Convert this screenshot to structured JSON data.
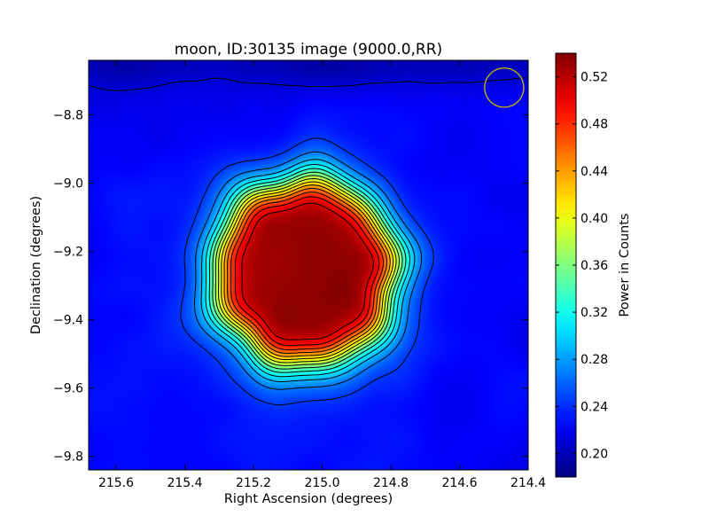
{
  "chart_data": {
    "type": "heatmap",
    "title": "moon, ID:30135 image (9000.0,RR)",
    "xlabel": "Right Ascension (degrees)",
    "ylabel": "Declination (degrees)",
    "xlim": [
      215.68,
      214.4
    ],
    "ylim": [
      -9.84,
      -8.64
    ],
    "x_ticks": [
      215.6,
      215.4,
      215.2,
      215.0,
      214.8,
      214.6,
      214.4
    ],
    "x_tick_labels": [
      "215.6",
      "215.4",
      "215.2",
      "215.0",
      "214.8",
      "214.6",
      "214.4"
    ],
    "y_ticks": [
      -8.8,
      -9.0,
      -9.2,
      -9.4,
      -9.6,
      -9.8
    ],
    "y_tick_labels": [
      "−8.8",
      "−9.0",
      "−9.2",
      "−9.4",
      "−9.6",
      "−9.8"
    ],
    "colorbar": {
      "label": "Power in Counts",
      "range": [
        0.18,
        0.54
      ],
      "colormap": "jet",
      "ticks": [
        0.2,
        0.24,
        0.28,
        0.32,
        0.36,
        0.4,
        0.44,
        0.48,
        0.52
      ],
      "tick_labels": [
        "0.20",
        "0.24",
        "0.28",
        "0.32",
        "0.36",
        "0.40",
        "0.44",
        "0.48",
        "0.52"
      ]
    },
    "source": {
      "center_ra": 215.05,
      "center_dec": -9.26,
      "peak_value": 0.535,
      "background_value": 0.225
    },
    "beam_marker": {
      "ra": 214.47,
      "dec": -8.72,
      "radius_deg": 0.057,
      "color": "#c8b400"
    },
    "contour_levels": [
      0.21,
      0.245,
      0.268,
      0.29,
      0.31,
      0.33,
      0.35,
      0.37,
      0.39,
      0.41,
      0.43,
      0.45,
      0.47,
      0.49,
      0.51
    ],
    "grid": false
  }
}
